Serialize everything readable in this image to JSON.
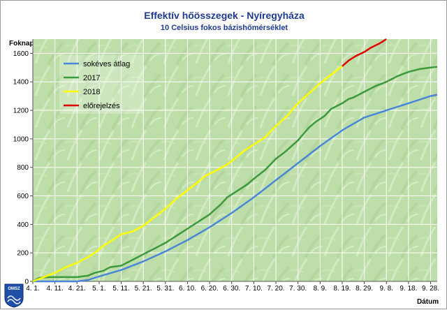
{
  "title": "Effektív hőösszegek - Nyíregyháza",
  "subtitle": "10 Celsius fokos bázishőmérséklet",
  "logo_text": "OMSZ",
  "colors": {
    "plot_bg": "#9ccc7c",
    "grid": "#ffffff",
    "title": "#1f3a93"
  },
  "chart_data": {
    "type": "line",
    "title": "Effektív hőösszegek - Nyíregyháza",
    "subtitle": "10 Celsius fokos bázishőmérséklet",
    "xlabel": "Dátum",
    "ylabel": "Foknap",
    "x_unit": "day index from 4. 1.",
    "xlim": [
      0,
      183
    ],
    "ylim": [
      0,
      1700
    ],
    "yticks": [
      0,
      200,
      400,
      600,
      800,
      1000,
      1200,
      1400,
      1600
    ],
    "xticks": [
      {
        "x": 0,
        "label": "4. 1."
      },
      {
        "x": 10,
        "label": "4. 11."
      },
      {
        "x": 20,
        "label": "4. 21."
      },
      {
        "x": 30,
        "label": "5. 1."
      },
      {
        "x": 40,
        "label": "5. 11."
      },
      {
        "x": 50,
        "label": "5. 21."
      },
      {
        "x": 60,
        "label": "5. 31."
      },
      {
        "x": 70,
        "label": "6. 10."
      },
      {
        "x": 80,
        "label": "6. 20."
      },
      {
        "x": 90,
        "label": "6. 30."
      },
      {
        "x": 100,
        "label": "7. 10."
      },
      {
        "x": 110,
        "label": "7. 20."
      },
      {
        "x": 120,
        "label": "7. 30."
      },
      {
        "x": 130,
        "label": "8. 9."
      },
      {
        "x": 140,
        "label": "8. 19."
      },
      {
        "x": 150,
        "label": "8. 29."
      },
      {
        "x": 160,
        "label": "9. 8."
      },
      {
        "x": 170,
        "label": "9. 18."
      },
      {
        "x": 180,
        "label": "9. 28."
      }
    ],
    "grid": true,
    "legend_position": "top-left",
    "series": [
      {
        "name": "sokéves átlag",
        "color": "#4a86d8",
        "points": [
          [
            0,
            0
          ],
          [
            10,
            0
          ],
          [
            20,
            0
          ],
          [
            25,
            10
          ],
          [
            30,
            35
          ],
          [
            40,
            80
          ],
          [
            50,
            140
          ],
          [
            60,
            210
          ],
          [
            70,
            290
          ],
          [
            80,
            380
          ],
          [
            90,
            480
          ],
          [
            100,
            590
          ],
          [
            110,
            710
          ],
          [
            120,
            830
          ],
          [
            130,
            950
          ],
          [
            140,
            1060
          ],
          [
            150,
            1150
          ],
          [
            160,
            1200
          ],
          [
            170,
            1250
          ],
          [
            180,
            1300
          ],
          [
            183,
            1310
          ]
        ]
      },
      {
        "name": "2017",
        "color": "#3c9a3c",
        "points": [
          [
            0,
            0
          ],
          [
            3,
            25
          ],
          [
            8,
            30
          ],
          [
            15,
            30
          ],
          [
            20,
            30
          ],
          [
            25,
            40
          ],
          [
            28,
            60
          ],
          [
            32,
            75
          ],
          [
            35,
            100
          ],
          [
            40,
            110
          ],
          [
            45,
            150
          ],
          [
            50,
            190
          ],
          [
            55,
            230
          ],
          [
            60,
            270
          ],
          [
            65,
            320
          ],
          [
            70,
            370
          ],
          [
            75,
            420
          ],
          [
            80,
            470
          ],
          [
            85,
            540
          ],
          [
            88,
            590
          ],
          [
            92,
            630
          ],
          [
            97,
            680
          ],
          [
            100,
            720
          ],
          [
            105,
            780
          ],
          [
            110,
            860
          ],
          [
            115,
            920
          ],
          [
            120,
            990
          ],
          [
            125,
            1080
          ],
          [
            128,
            1120
          ],
          [
            132,
            1160
          ],
          [
            135,
            1210
          ],
          [
            140,
            1250
          ],
          [
            143,
            1280
          ],
          [
            145,
            1290
          ],
          [
            150,
            1330
          ],
          [
            155,
            1370
          ],
          [
            160,
            1400
          ],
          [
            165,
            1440
          ],
          [
            170,
            1470
          ],
          [
            175,
            1490
          ],
          [
            180,
            1500
          ],
          [
            183,
            1505
          ]
        ]
      },
      {
        "name": "2018",
        "color": "#ffff00",
        "points": [
          [
            0,
            0
          ],
          [
            5,
            30
          ],
          [
            10,
            60
          ],
          [
            15,
            100
          ],
          [
            20,
            130
          ],
          [
            25,
            170
          ],
          [
            28,
            200
          ],
          [
            32,
            250
          ],
          [
            36,
            290
          ],
          [
            40,
            330
          ],
          [
            45,
            350
          ],
          [
            50,
            390
          ],
          [
            55,
            450
          ],
          [
            60,
            510
          ],
          [
            65,
            580
          ],
          [
            70,
            640
          ],
          [
            75,
            700
          ],
          [
            78,
            740
          ],
          [
            82,
            770
          ],
          [
            88,
            820
          ],
          [
            92,
            870
          ],
          [
            96,
            920
          ],
          [
            100,
            960
          ],
          [
            105,
            1010
          ],
          [
            110,
            1090
          ],
          [
            115,
            1160
          ],
          [
            120,
            1250
          ],
          [
            125,
            1320
          ],
          [
            130,
            1390
          ],
          [
            135,
            1450
          ],
          [
            140,
            1510
          ]
        ]
      },
      {
        "name": "előrejelzés",
        "color": "#e00000",
        "points": [
          [
            140,
            1510
          ],
          [
            143,
            1550
          ],
          [
            146,
            1580
          ],
          [
            150,
            1610
          ],
          [
            153,
            1640
          ],
          [
            157,
            1670
          ],
          [
            160,
            1700
          ]
        ]
      }
    ]
  }
}
